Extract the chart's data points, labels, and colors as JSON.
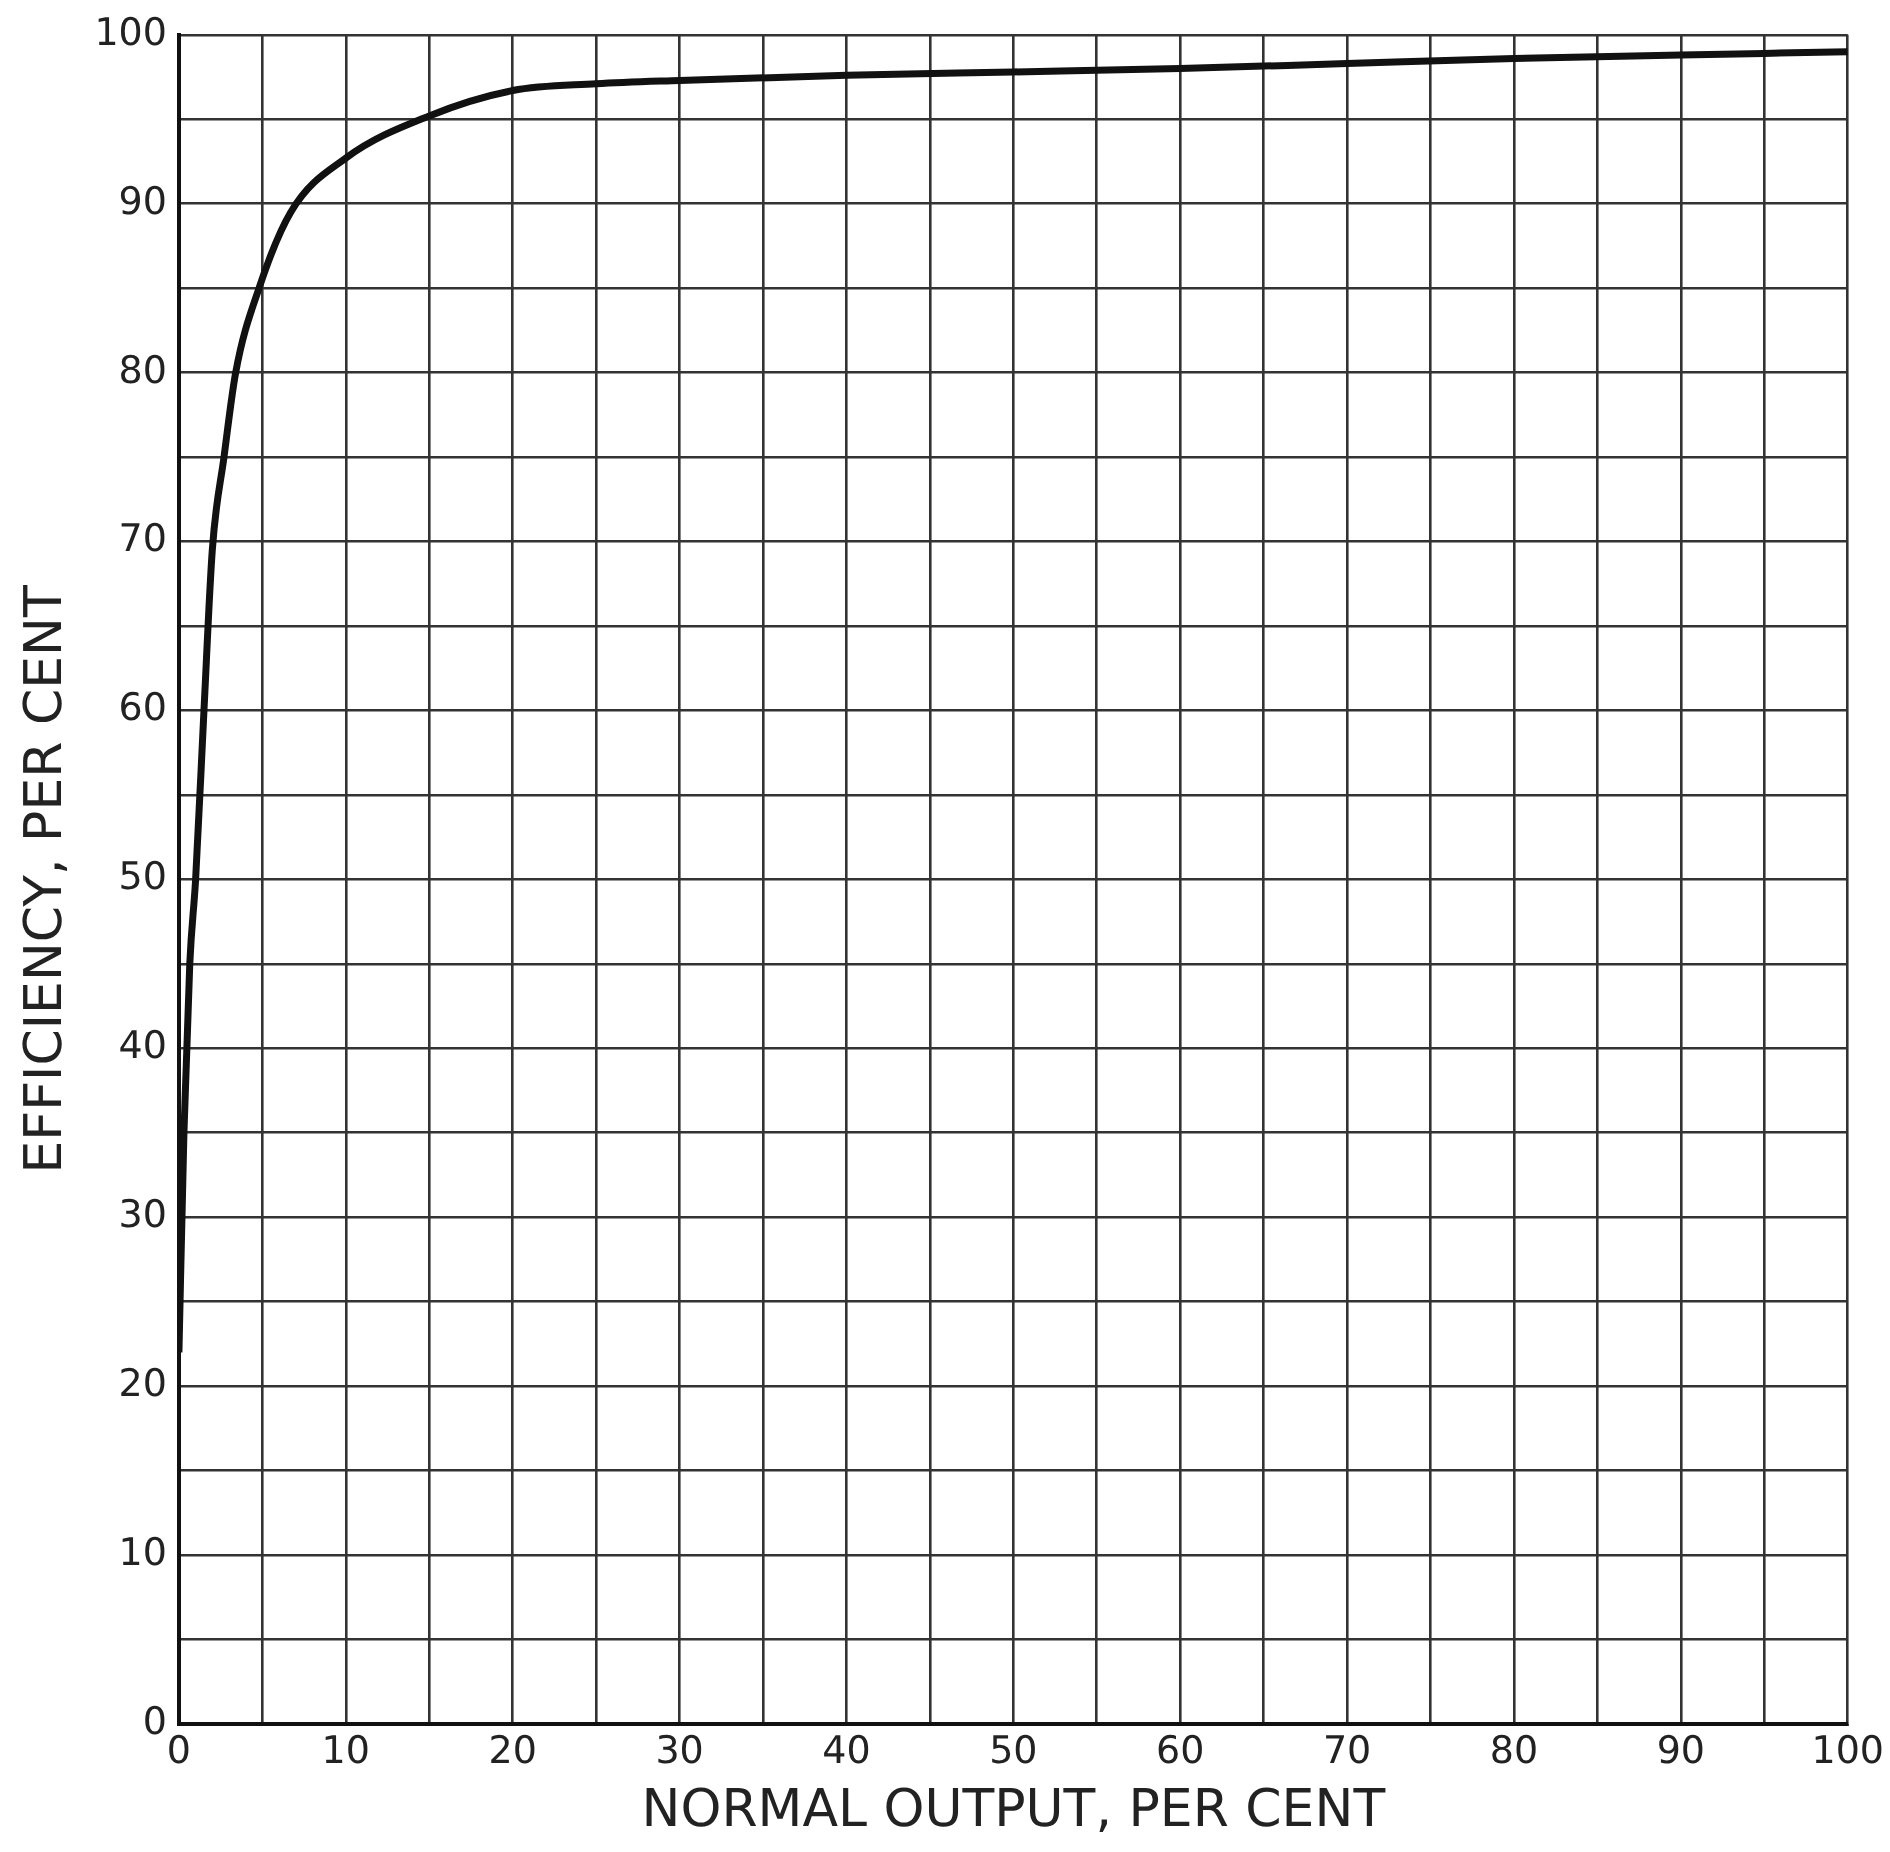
{
  "chart_data": {
    "type": "line",
    "xlabel": "NORMAL OUTPUT, PER CENT",
    "ylabel": "EFFICIENCY, PER CENT",
    "series": [
      {
        "color": "#111111",
        "x": [
          0,
          0.3,
          0.65,
          1,
          1.5,
          2,
          2.7,
          3.4,
          4.8,
          6.7,
          10,
          15,
          20,
          25,
          30,
          40,
          50,
          60,
          70,
          80,
          90,
          100
        ],
        "values": [
          22,
          35,
          45,
          50,
          60,
          69.5,
          75,
          80,
          85,
          89.5,
          92.7,
          95.2,
          96.7,
          97.1,
          97.3,
          97.6,
          97.8,
          98,
          98.3,
          98.6,
          98.8,
          99
        ]
      }
    ],
    "xlim": [
      0,
      100
    ],
    "ylim": [
      0,
      100
    ],
    "xticks": [
      0,
      {
        "value": 5,
        "label": null
      },
      10,
      {
        "value": 15,
        "label": null
      },
      20,
      {
        "value": 25,
        "label": null
      },
      30,
      {
        "value": 35,
        "label": null
      },
      40,
      {
        "value": 45,
        "label": null
      },
      50,
      {
        "value": 55,
        "label": null
      },
      60,
      {
        "value": 65,
        "label": null
      },
      70,
      {
        "value": 75,
        "label": null
      },
      80,
      {
        "value": 85,
        "label": null
      },
      90,
      {
        "value": 95,
        "label": null
      },
      100
    ],
    "yticks": [
      0,
      {
        "value": 5,
        "label": null
      },
      10,
      {
        "value": 15,
        "label": null
      },
      20,
      {
        "value": 25,
        "label": null
      },
      30,
      {
        "value": 35,
        "label": null
      },
      40,
      {
        "value": 45,
        "label": null
      },
      50,
      {
        "value": 55,
        "label": null
      },
      60,
      {
        "value": 65,
        "label": null
      },
      70,
      {
        "value": 75,
        "label": null
      },
      80,
      {
        "value": 85,
        "label": null
      },
      90,
      {
        "value": 95,
        "label": null
      },
      100
    ],
    "grid": true,
    "legend": false,
    "marker": "none",
    "line_style": "solid"
  }
}
